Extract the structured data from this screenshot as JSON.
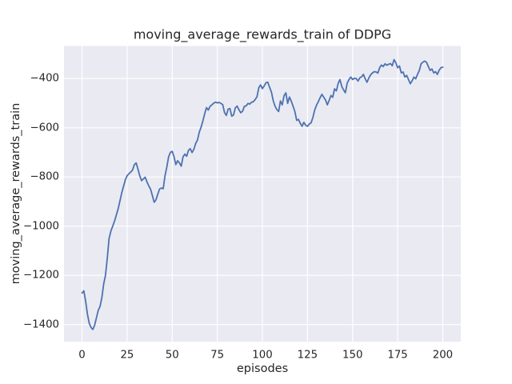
{
  "figure": {
    "background_color": "#ffffff"
  },
  "chart_data": {
    "type": "line",
    "title": "moving_average_rewards_train of DDPG",
    "xlabel": "episodes",
    "ylabel": "moving_average_rewards_train",
    "style": "seaborn-darkgrid",
    "grid": true,
    "legend": false,
    "colors": {
      "axes_background": "#EAEAF2",
      "gridline": "#FFFFFF",
      "line": "#4C72B0",
      "text": "#262626"
    },
    "xlim": [
      -10,
      210
    ],
    "ylim": [
      -1470,
      -268
    ],
    "xticks": {
      "values": [
        0,
        25,
        50,
        75,
        100,
        125,
        150,
        175,
        200
      ],
      "labels": [
        "0",
        "25",
        "50",
        "75",
        "100",
        "125",
        "150",
        "175",
        "200"
      ]
    },
    "yticks": {
      "values": [
        -400,
        -600,
        -800,
        -1000,
        -1200,
        -1400
      ],
      "labels": [
        "−400",
        "−600",
        "−800",
        "−1000",
        "−1200",
        "−1400"
      ]
    },
    "series": [
      {
        "name": "moving_average_rewards_train",
        "x_start": 0,
        "x_step": 1,
        "values": [
          -1272,
          -1263,
          -1305,
          -1358,
          -1395,
          -1412,
          -1420,
          -1402,
          -1372,
          -1342,
          -1326,
          -1290,
          -1235,
          -1200,
          -1130,
          -1050,
          -1020,
          -1000,
          -980,
          -955,
          -930,
          -898,
          -865,
          -838,
          -812,
          -795,
          -787,
          -780,
          -772,
          -750,
          -743,
          -768,
          -795,
          -815,
          -808,
          -801,
          -820,
          -836,
          -850,
          -876,
          -903,
          -893,
          -870,
          -849,
          -845,
          -848,
          -795,
          -760,
          -718,
          -700,
          -696,
          -718,
          -750,
          -734,
          -743,
          -756,
          -718,
          -707,
          -716,
          -692,
          -685,
          -701,
          -688,
          -664,
          -650,
          -618,
          -598,
          -572,
          -543,
          -518,
          -528,
          -513,
          -507,
          -500,
          -496,
          -499,
          -497,
          -501,
          -506,
          -538,
          -550,
          -524,
          -522,
          -553,
          -548,
          -519,
          -512,
          -527,
          -539,
          -533,
          -513,
          -511,
          -501,
          -504,
          -496,
          -494,
          -485,
          -474,
          -437,
          -426,
          -441,
          -430,
          -417,
          -415,
          -436,
          -455,
          -490,
          -512,
          -526,
          -534,
          -491,
          -507,
          -470,
          -458,
          -501,
          -475,
          -492,
          -512,
          -534,
          -570,
          -566,
          -582,
          -594,
          -578,
          -590,
          -594,
          -585,
          -580,
          -558,
          -528,
          -508,
          -494,
          -478,
          -464,
          -476,
          -487,
          -507,
          -489,
          -469,
          -476,
          -442,
          -450,
          -420,
          -404,
          -432,
          -446,
          -458,
          -419,
          -404,
          -394,
          -404,
          -399,
          -400,
          -410,
          -397,
          -393,
          -383,
          -401,
          -415,
          -398,
          -385,
          -377,
          -372,
          -373,
          -378,
          -356,
          -345,
          -351,
          -340,
          -346,
          -342,
          -339,
          -348,
          -323,
          -336,
          -356,
          -349,
          -377,
          -373,
          -394,
          -387,
          -404,
          -421,
          -409,
          -394,
          -401,
          -383,
          -367,
          -340,
          -333,
          -329,
          -334,
          -351,
          -367,
          -361,
          -377,
          -372,
          -383,
          -366,
          -356,
          -354
        ]
      }
    ]
  }
}
